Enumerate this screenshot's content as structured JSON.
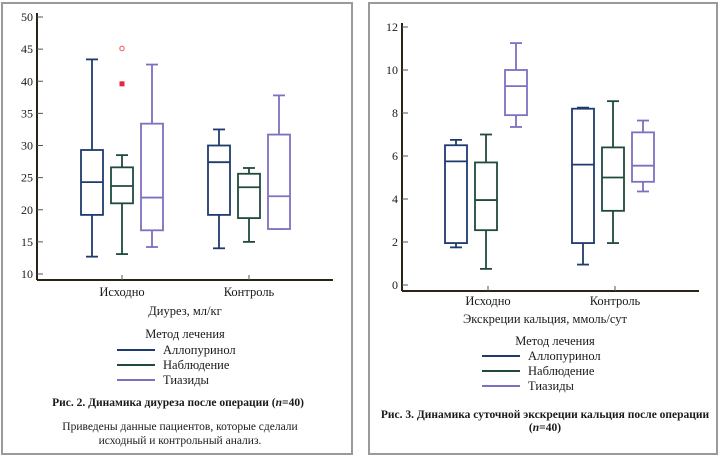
{
  "figures": [
    {
      "id": "fig2",
      "caption_title": "Рис. 2. Динамика диуреза после операции (",
      "caption_n": "n",
      "caption_title_end": "=40)",
      "caption_note": "Приведены данные пациентов, которые сделали исходный и контрольный анализ."
    },
    {
      "id": "fig3",
      "caption_title": "Рис. 3. Динамика суточной экскреции кальция после операции",
      "caption_n": "n",
      "caption_title_end": "=40)",
      "caption_line2_start": "("
    }
  ],
  "legend": {
    "title": "Метод лечения",
    "items": [
      {
        "label": "Аллопуринол",
        "color": "#1f3a6e"
      },
      {
        "label": "Наблюдение",
        "color": "#1f4a3c"
      },
      {
        "label": "Тиазиды",
        "color": "#7d70c2"
      }
    ]
  },
  "chart_data": [
    {
      "type": "boxplot",
      "title": "Рис. 2. Динамика диуреза после операции (n=40)",
      "xlabel": "Диурез, мл/кг",
      "ylabel": "",
      "categories": [
        "Исходно",
        "Контроль"
      ],
      "ylim": [
        10,
        50
      ],
      "yticks": [
        10,
        15,
        20,
        25,
        30,
        35,
        40,
        45,
        50
      ],
      "grid": false,
      "legend_title": "Метод лечения",
      "legend_position": "bottom",
      "series": [
        {
          "name": "Аллопуринол",
          "color": "#1f3a6e",
          "boxes": [
            {
              "min": 12.7,
              "q1": 19.2,
              "median": 24.3,
              "q3": 29.3,
              "max": 43.4
            },
            {
              "min": 14.0,
              "q1": 19.2,
              "median": 27.4,
              "q3": 30.0,
              "max": 32.5
            }
          ]
        },
        {
          "name": "Наблюдение",
          "color": "#1f4a3c",
          "boxes": [
            {
              "min": 13.1,
              "q1": 21.0,
              "median": 23.7,
              "q3": 26.6,
              "max": 28.5,
              "outliers": [
                {
                  "value": 45.1,
                  "marker": "circle",
                  "color": "#f07070"
                },
                {
                  "value": 39.6,
                  "marker": "square",
                  "color": "#e02a3a"
                }
              ]
            },
            {
              "min": 15.0,
              "q1": 18.7,
              "median": 23.5,
              "q3": 25.6,
              "max": 26.5
            }
          ]
        },
        {
          "name": "Тиазиды",
          "color": "#7d70c2",
          "boxes": [
            {
              "min": 14.2,
              "q1": 16.8,
              "median": 21.9,
              "q3": 33.4,
              "max": 42.6
            },
            {
              "min": 17.0,
              "q1": 17.0,
              "median": 22.1,
              "q3": 31.7,
              "max": 37.8
            }
          ]
        }
      ]
    },
    {
      "type": "boxplot",
      "title": "Рис. 3. Динамика суточной экскреции кальция после операции (n=40)",
      "xlabel": "Экскреции кальция, ммоль/сут",
      "ylabel": "",
      "categories": [
        "Исходно",
        "Контроль"
      ],
      "ylim": [
        0,
        12
      ],
      "yticks": [
        0,
        2,
        4,
        6,
        8,
        10,
        12
      ],
      "grid": false,
      "legend_title": "Метод лечения",
      "legend_position": "bottom",
      "series": [
        {
          "name": "Аллопуринол",
          "color": "#1f3a6e",
          "boxes": [
            {
              "min": 1.75,
              "q1": 1.95,
              "median": 5.75,
              "q3": 6.5,
              "max": 6.75
            },
            {
              "min": 0.95,
              "q1": 1.95,
              "median": 5.6,
              "q3": 8.2,
              "max": 8.25
            }
          ]
        },
        {
          "name": "Наблюдение",
          "color": "#1f4a3c",
          "boxes": [
            {
              "min": 0.75,
              "q1": 2.55,
              "median": 3.95,
              "q3": 5.7,
              "max": 7.0
            },
            {
              "min": 1.95,
              "q1": 3.45,
              "median": 5.0,
              "q3": 6.4,
              "max": 8.55
            }
          ]
        },
        {
          "name": "Тиазиды",
          "color": "#7d70c2",
          "boxes": [
            {
              "min": 7.35,
              "q1": 7.9,
              "median": 9.25,
              "q3": 10.0,
              "max": 11.25
            },
            {
              "min": 4.35,
              "q1": 4.8,
              "median": 5.55,
              "q3": 7.1,
              "max": 7.65
            }
          ]
        }
      ]
    }
  ]
}
